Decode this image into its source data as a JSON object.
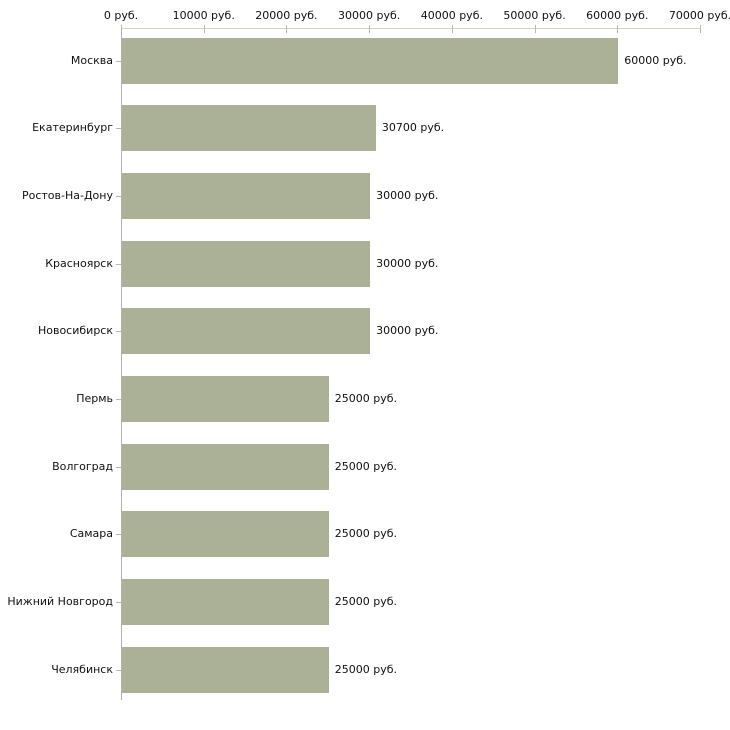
{
  "chart_data": {
    "type": "bar",
    "orientation": "horizontal",
    "title": "",
    "categories": [
      "Москва",
      "Екатеринбург",
      "Ростов-На-Дону",
      "Красноярск",
      "Новосибирск",
      "Пермь",
      "Волгоград",
      "Самара",
      "Нижний Новгород",
      "Челябинск"
    ],
    "values": [
      60000,
      30700,
      30000,
      30000,
      30000,
      25000,
      25000,
      25000,
      25000,
      25000
    ],
    "value_labels": [
      "60000 руб.",
      "30700 руб.",
      "30000 руб.",
      "30000 руб.",
      "30000 руб.",
      "25000 руб.",
      "25000 руб.",
      "25000 руб.",
      "25000 руб.",
      "25000 руб."
    ],
    "unit": "руб.",
    "x_axis": {
      "position": "top",
      "min": 0,
      "max": 70000,
      "tick_step": 10000,
      "tick_labels": [
        "0 руб.",
        "10000 руб.",
        "20000 руб.",
        "30000 руб.",
        "40000 руб.",
        "50000 руб.",
        "60000 руб.",
        "70000 руб."
      ]
    },
    "grid": false,
    "legend": null,
    "colors": {
      "bar": "#abb196",
      "axis_vertical_line": "#b3b3b3",
      "axis_horizontal_line": "#d4d4c6",
      "tick": "#b9bb9b",
      "text": "#111111",
      "background": "#ffffff"
    }
  }
}
